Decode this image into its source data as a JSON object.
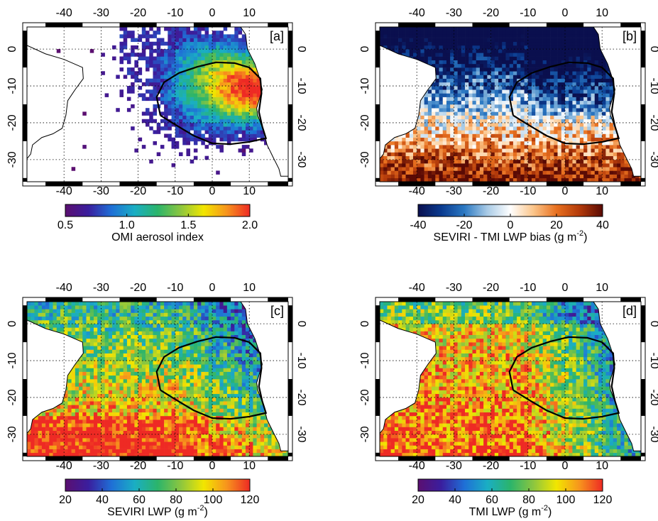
{
  "axes": {
    "xlim": [
      -50,
      20.5
    ],
    "ylim": [
      -36,
      6
    ],
    "xticks": [
      -40,
      -30,
      -20,
      -10,
      0,
      10
    ],
    "yticks": [
      0,
      -10,
      -20,
      -30
    ]
  },
  "panels": [
    {
      "label": "[a]",
      "field": "aerosol",
      "colorbar": {
        "label": "OMI aerosol index",
        "lim": [
          0.5,
          2.0
        ],
        "ticks": [
          0.5,
          {
            "value": 1.0,
            "label": "1.0"
          },
          1.5,
          {
            "value": 2.0,
            "label": "2.0"
          }
        ],
        "colormap": [
          "#5b0f70",
          "#3a1e9e",
          "#1f6fd6",
          "#1aaec4",
          "#2bb46b",
          "#8cc63f",
          "#f2e600",
          "#f7941d",
          "#ee2a24"
        ]
      }
    },
    {
      "label": "[b]",
      "field": "bias",
      "colorbar": {
        "label": "SEVIRI - TMI LWP bias (g m",
        "label_sup": "-2",
        "label_end": ")",
        "lim": [
          -40,
          40
        ],
        "ticks": [
          -40,
          -20,
          0,
          20,
          40
        ],
        "colormap": [
          "#0a0f4e",
          "#0a3a8f",
          "#2a78c2",
          "#a9cbe6",
          "#ffffff",
          "#fbc58a",
          "#e8701f",
          "#b33a0a",
          "#5a0a04"
        ]
      }
    },
    {
      "label": "[c]",
      "field": "seviri",
      "colorbar": {
        "label": "SEVIRI LWP (g m",
        "label_sup": "-2",
        "label_end": ")",
        "lim": [
          20,
          120
        ],
        "ticks": [
          20,
          40,
          60,
          80,
          100,
          120
        ],
        "colormap": [
          "#5b0f70",
          "#3a1e9e",
          "#1f6fd6",
          "#1aaec4",
          "#2bb46b",
          "#8cc63f",
          "#f2e600",
          "#f7941d",
          "#ee2a24"
        ]
      }
    },
    {
      "label": "[d]",
      "field": "tmi",
      "colorbar": {
        "label": "TMI LWP (g m",
        "label_sup": "-2",
        "label_end": ")",
        "lim": [
          20,
          120
        ],
        "ticks": [
          20,
          40,
          60,
          80,
          100,
          120
        ],
        "colormap": [
          "#5b0f70",
          "#3a1e9e",
          "#1f6fd6",
          "#1aaec4",
          "#2bb46b",
          "#8cc63f",
          "#f2e600",
          "#f7941d",
          "#ee2a24"
        ]
      }
    }
  ]
}
